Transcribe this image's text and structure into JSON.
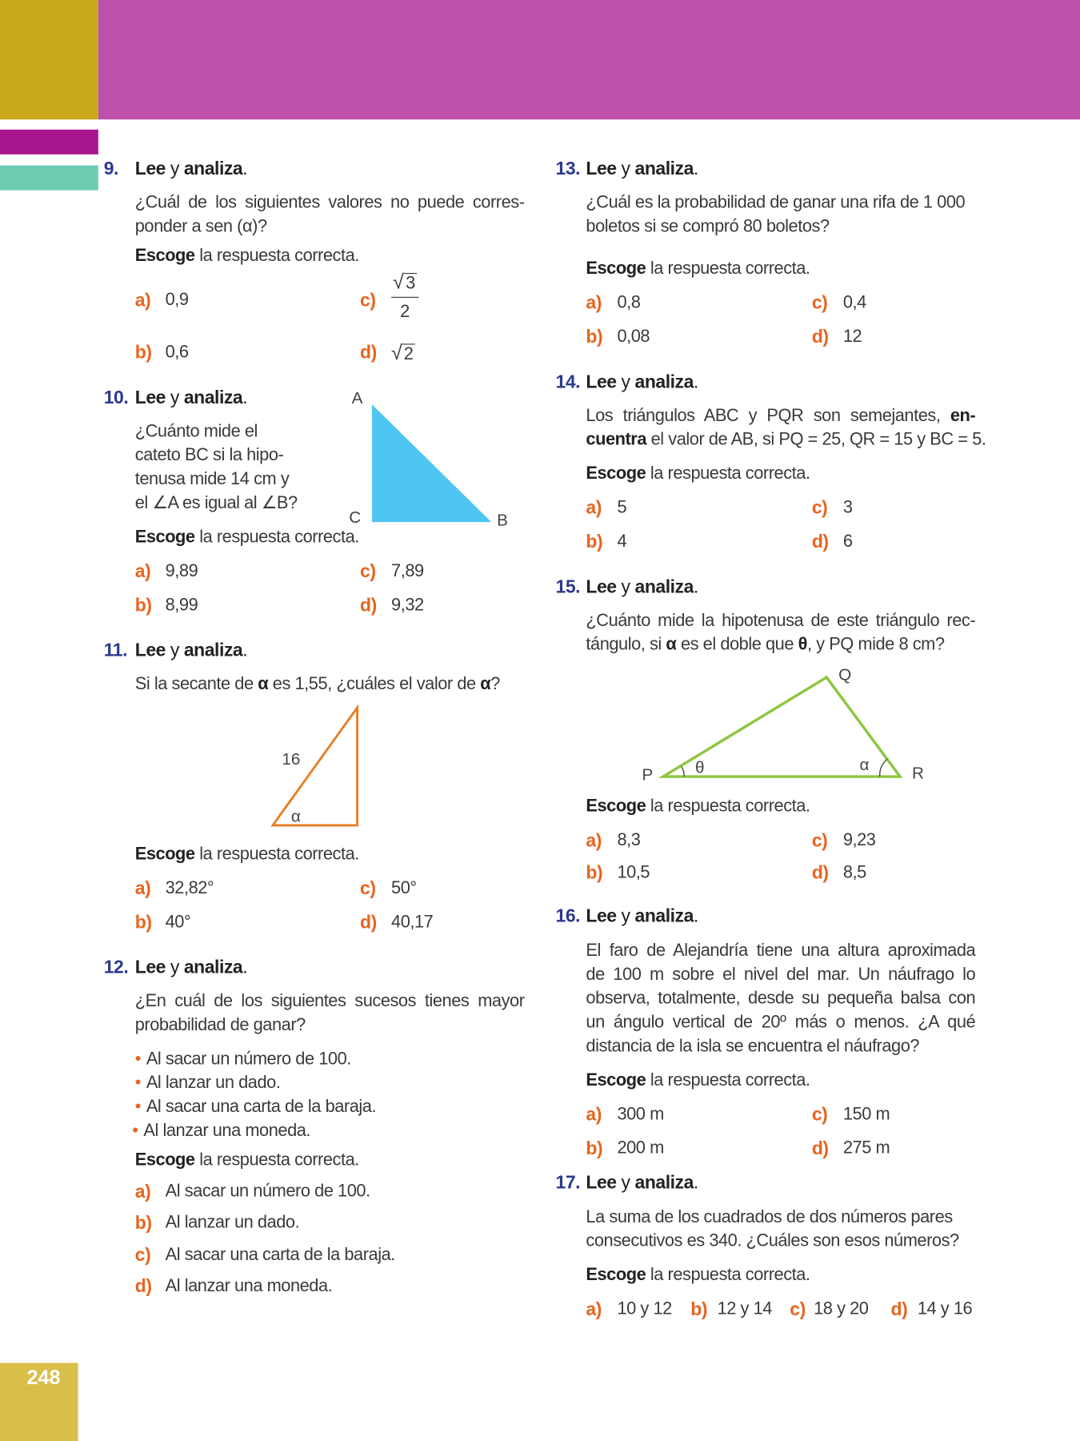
{
  "colors": {
    "gold": "#c9a81a",
    "magenta": "#bd50ab",
    "dark_magenta": "#a8168e",
    "teal": "#6ccdb3",
    "number_blue": "#2b3990",
    "option_orange": "#e8641e",
    "triangle_blue": "#4fc6f1",
    "triangle_orange": "#e87d22",
    "triangle_green": "#8dc63f",
    "page_box": "#d9be4a"
  },
  "page_number": "248",
  "questions": [
    {
      "num": "9.",
      "title": [
        "Lee",
        "y",
        "analiza",
        "."
      ],
      "lines": [
        [
          "¿Cuál de los siguientes valores no puede corres-"
        ],
        [
          "ponder a sen (α)?"
        ]
      ],
      "escoge": [
        "Escoge",
        "la respuesta correcta."
      ],
      "options": [
        {
          "label": "a)",
          "value": "0,9"
        },
        {
          "label": "b)",
          "value": "0,6"
        },
        {
          "label": "c)",
          "sqrt": "3",
          "den": "2"
        },
        {
          "label": "d)",
          "sqrt": "2"
        }
      ]
    },
    {
      "num": "10.",
      "title": [
        "Lee",
        "y",
        "analiza",
        "."
      ],
      "lines": [
        [
          "¿Cuánto mide el"
        ],
        [
          "cateto BC si la hipo-"
        ],
        [
          "tenusa mide 14 cm y"
        ],
        [
          "el ∠A es igual al ∠B?"
        ]
      ],
      "escoge": [
        "Escoge",
        "la respuesta correcta."
      ],
      "options": [
        {
          "label": "a)",
          "value": "9,89"
        },
        {
          "label": "b)",
          "value": "8,99"
        },
        {
          "label": "c)",
          "value": "7,89"
        },
        {
          "label": "d)",
          "value": "9,32"
        }
      ]
    },
    {
      "num": "11.",
      "title": [
        "Lee",
        "y",
        "analiza",
        "."
      ],
      "lines": [
        [
          "Si la secante de ",
          {
            "b": "α"
          },
          " es 1,55, ¿cuáles el valor de ",
          {
            "b": "α"
          },
          "?"
        ]
      ],
      "escoge": [
        "Escoge",
        "la respuesta correcta."
      ],
      "options": [
        {
          "label": "a)",
          "value": "32,82°"
        },
        {
          "label": "b)",
          "value": "40°"
        },
        {
          "label": "c)",
          "value": "50°"
        },
        {
          "label": "d)",
          "value": "40,17"
        }
      ]
    },
    {
      "num": "12.",
      "title": [
        "Lee",
        "y",
        "analiza",
        "."
      ],
      "lines": [
        [
          "¿En cuál de los siguientes sucesos tienes mayor"
        ],
        [
          "probabilidad de ganar?"
        ]
      ],
      "bullets": [
        "Al sacar un número de 100.",
        "Al lanzar un dado.",
        "Al sacar una carta de la baraja.",
        "Al lanzar una moneda."
      ],
      "escoge": [
        "Escoge",
        "la respuesta correcta."
      ],
      "options": [
        {
          "label": "a)",
          "value": "Al sacar un número de 100."
        },
        {
          "label": "b)",
          "value": "Al lanzar un dado."
        },
        {
          "label": "c)",
          "value": "Al sacar una carta de la baraja."
        },
        {
          "label": "d)",
          "value": "Al lanzar una moneda."
        }
      ]
    },
    {
      "num": "13.",
      "title": [
        "Lee",
        "y",
        "analiza",
        "."
      ],
      "lines": [
        [
          "¿Cuál es la probabilidad de ganar una rifa de 1 000"
        ],
        [
          "boletos si se compró 80 boletos?"
        ]
      ],
      "escoge": [
        "Escoge",
        "la respuesta correcta."
      ],
      "options": [
        {
          "label": "a)",
          "value": "0,8"
        },
        {
          "label": "b)",
          "value": "0,08"
        },
        {
          "label": "c)",
          "value": "0,4"
        },
        {
          "label": "d)",
          "value": "12"
        }
      ]
    },
    {
      "num": "14.",
      "title": [
        "Lee",
        "y",
        "analiza",
        "."
      ],
      "lines": [
        [
          "Los triángulos ABC y PQR son semejantes, ",
          {
            "b": "en-"
          }
        ],
        [
          {
            "b": "cuentra"
          },
          " el valor de AB, si PQ = 25, QR = 15 y BC = 5."
        ]
      ],
      "escoge": [
        "Escoge",
        "la respuesta correcta."
      ],
      "options": [
        {
          "label": "a)",
          "value": "5"
        },
        {
          "label": "b)",
          "value": "4"
        },
        {
          "label": "c)",
          "value": "3"
        },
        {
          "label": "d)",
          "value": "6"
        }
      ]
    },
    {
      "num": "15.",
      "title": [
        "Lee",
        "y",
        "analiza",
        "."
      ],
      "lines": [
        [
          "¿Cuánto mide la hipotenusa de este triángulo rec-"
        ],
        [
          "tángulo, si ",
          {
            "b": "α"
          },
          " es el doble que ",
          {
            "b": "θ"
          },
          ", y PQ mide 8 cm?"
        ]
      ],
      "escoge": [
        "Escoge",
        "la respuesta correcta."
      ],
      "options": [
        {
          "label": "a)",
          "value": "8,3"
        },
        {
          "label": "b)",
          "value": "10,5"
        },
        {
          "label": "c)",
          "value": "9,23"
        },
        {
          "label": "d)",
          "value": "8,5"
        }
      ]
    },
    {
      "num": "16.",
      "title": [
        "Lee",
        "y",
        "analiza",
        "."
      ],
      "lines": [
        [
          "El faro de Alejandría tiene una altura aproximada"
        ],
        [
          "de 100 m sobre el nivel del mar. Un náufrago lo"
        ],
        [
          "observa, totalmente, desde su pequeña balsa con"
        ],
        [
          "un ángulo vertical de 20º más o menos. ¿A qué"
        ],
        [
          "distancia de la isla se encuentra el náufrago?"
        ]
      ],
      "escoge": [
        "Escoge",
        "la respuesta correcta."
      ],
      "options": [
        {
          "label": "a)",
          "value": "300 m"
        },
        {
          "label": "b)",
          "value": "200 m"
        },
        {
          "label": "c)",
          "value": "150 m"
        },
        {
          "label": "d)",
          "value": "275 m"
        }
      ]
    },
    {
      "num": "17.",
      "title": [
        "Lee",
        "y",
        "analiza",
        "."
      ],
      "lines": [
        [
          "La suma de los cuadrados de dos números pares"
        ],
        [
          "consecutivos es 340. ¿Cuáles son esos números?"
        ]
      ],
      "escoge": [
        "Escoge",
        "la respuesta correcta."
      ],
      "options": [
        {
          "label": "a)",
          "value": "10 y 12"
        },
        {
          "label": "b)",
          "value": "12 y 14"
        },
        {
          "label": "c)",
          "value": "18 y 20"
        },
        {
          "label": "d)",
          "value": "14 y 16"
        }
      ]
    }
  ],
  "figures": {
    "triangle_abc": {
      "labels": [
        "A",
        "B",
        "C"
      ]
    },
    "triangle_11": {
      "side": "16",
      "angle": "α"
    },
    "triangle_pqr": {
      "labels": [
        "P",
        "Q",
        "R"
      ],
      "angles": [
        "θ",
        "α"
      ]
    }
  }
}
